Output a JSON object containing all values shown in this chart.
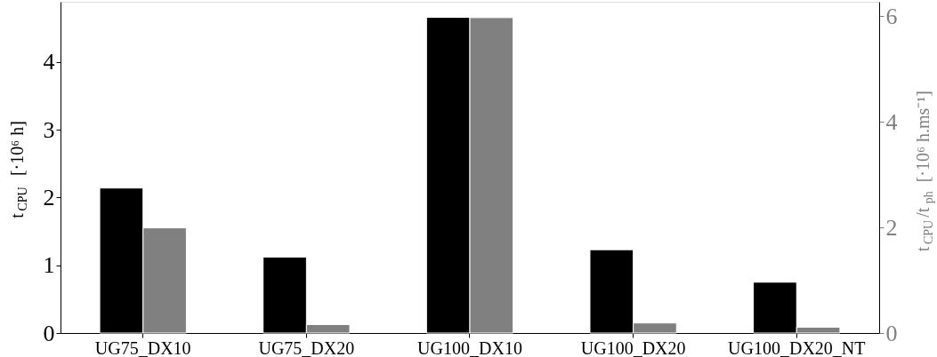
{
  "chart_data": {
    "type": "bar",
    "categories": [
      "UG75_DX10",
      "UG75_DX20",
      "UG100_DX10",
      "UG100_DX20",
      "UG100_DX20_NT"
    ],
    "ylabel": "t$_{CPU}$ [·10⁶ h]",
    "y2label": "t$_{CPU}$/t$_{ph}$ [·10⁶ h.ms⁻¹]",
    "series": [
      {
        "color": "#000000",
        "values": [
          2.14,
          1.12,
          4.66,
          1.23,
          0.75
        ]
      },
      {
        "color": "#808080",
        "axis": "y2",
        "values": [
          1.99,
          0.16,
          5.97,
          0.19,
          0.11
        ]
      }
    ],
    "ylim": [
      0,
      4.89
    ],
    "yticks": [
      0,
      1,
      2,
      3,
      4
    ],
    "y2lim": [
      0,
      6.27
    ],
    "y2ticks": [
      0,
      2,
      4,
      6
    ],
    "grid": false
  }
}
